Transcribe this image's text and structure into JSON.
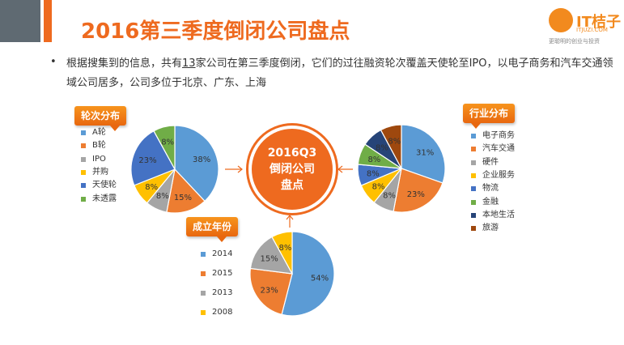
{
  "header": {
    "title": "2016第三季度倒闭公司盘点",
    "logo": {
      "name": "IT桔子",
      "url": "ITJUZI.COM",
      "tagline": "更聪明的创业与投资"
    }
  },
  "summary": {
    "bullet": "•",
    "text_before": "根据搜集到的信息，共有",
    "highlight": "13",
    "text_after": "家公司在第三季度倒闭，它们的过往融资轮次覆盖天使轮至IPO，以电子商务和汽车交通领域公司居多，公司多位于北京、广东、上海"
  },
  "center": {
    "line1": "2016Q3",
    "line2": "倒闭公司",
    "line3": "盘点"
  },
  "chart_data": [
    {
      "type": "pie",
      "title": "轮次分布",
      "categories": [
        "A轮",
        "B轮",
        "IPO",
        "并购",
        "天使轮",
        "未透露"
      ],
      "values": [
        38,
        15,
        8,
        8,
        23,
        8
      ],
      "labels": [
        "38%",
        "15%",
        "8%",
        "8%",
        "23%",
        "8%"
      ],
      "colors": [
        "#5b9bd5",
        "#ed7d31",
        "#a5a5a5",
        "#ffc000",
        "#4472c4",
        "#70ad47"
      ],
      "legend_position": "left"
    },
    {
      "type": "pie",
      "title": "行业分布",
      "categories": [
        "电子商务",
        "汽车交通",
        "硬件",
        "企业服务",
        "物流",
        "金融",
        "本地生活",
        "旅游"
      ],
      "values": [
        31,
        23,
        8,
        8,
        8,
        8,
        8,
        8
      ],
      "labels": [
        "31%",
        "23%",
        "8%",
        "8%",
        "8%",
        "8%",
        "8%",
        "8%"
      ],
      "colors": [
        "#5b9bd5",
        "#ed7d31",
        "#a5a5a5",
        "#ffc000",
        "#4472c4",
        "#70ad47",
        "#264478",
        "#9e480e"
      ],
      "legend_position": "right"
    },
    {
      "type": "pie",
      "title": "成立年份",
      "categories": [
        "2014",
        "2015",
        "2013",
        "2008"
      ],
      "values": [
        54,
        23,
        15,
        8
      ],
      "labels": [
        "54%",
        "23%",
        "15%",
        "8%"
      ],
      "colors": [
        "#5b9bd5",
        "#ed7d31",
        "#a5a5a5",
        "#ffc000"
      ],
      "legend_position": "left"
    }
  ]
}
